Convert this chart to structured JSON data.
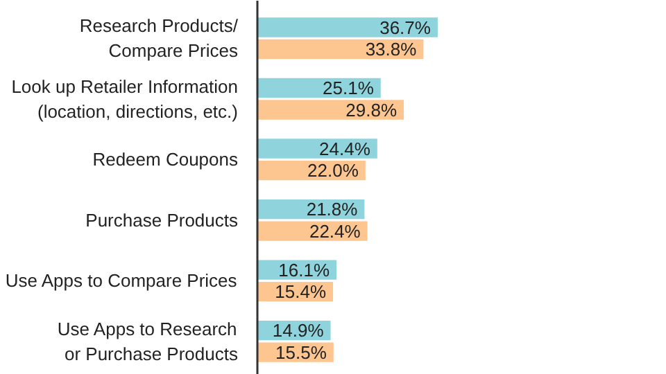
{
  "chart_data": {
    "type": "bar",
    "orientation": "horizontal",
    "categories": [
      "Research Products/\nCompare Prices",
      "Look up Retailer Information\n(location, directions, etc.)",
      "Redeem Coupons",
      "Purchase Products",
      "Use Apps to Compare Prices",
      "Use Apps to Research\nor Purchase Products"
    ],
    "series": [
      {
        "color": "#8fd4dc",
        "values": [
          36.7,
          25.1,
          24.4,
          21.8,
          16.1,
          14.9
        ],
        "value_labels": [
          "36.7%",
          "25.1%",
          "24.4%",
          "21.8%",
          "16.1%",
          "14.9%"
        ]
      },
      {
        "color": "#fdc590",
        "values": [
          33.8,
          29.8,
          22.0,
          22.4,
          15.4,
          15.5
        ],
        "value_labels": [
          "33.8%",
          "29.8%",
          "22.0%",
          "22.4%",
          "15.4%",
          "15.5%"
        ]
      }
    ],
    "data_labels": true,
    "grid": false
  }
}
